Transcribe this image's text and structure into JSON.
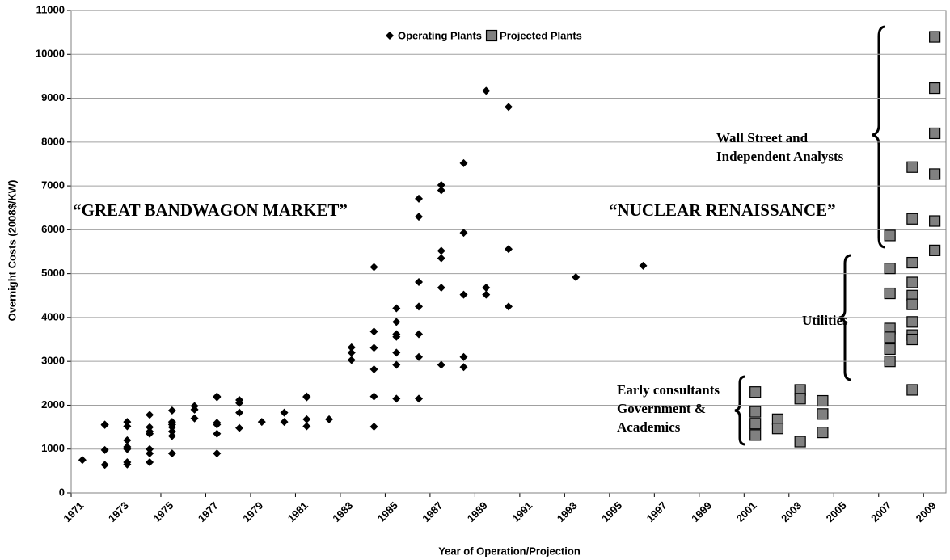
{
  "chart_data": {
    "type": "scatter",
    "xlabel": "Year of Operation/Projection",
    "ylabel": "Overnight Costs (2008$/KW)",
    "xlim": [
      1971,
      2010
    ],
    "xticks": [
      1971,
      1973,
      1975,
      1977,
      1979,
      1981,
      1983,
      1985,
      1987,
      1989,
      1991,
      1993,
      1995,
      1997,
      1999,
      2001,
      2003,
      2005,
      2007,
      2009
    ],
    "ylim": [
      0,
      11000
    ],
    "yticks": [
      0,
      1000,
      2000,
      3000,
      4000,
      5000,
      6000,
      7000,
      8000,
      9000,
      10000,
      11000
    ],
    "grid": true,
    "legend": "top",
    "series": [
      {
        "name": "Operating Plants",
        "color": "#000000",
        "marker": "diamond",
        "x": [
          1971.5,
          1972.5,
          1972.5,
          1972.5,
          1972.5,
          1973.5,
          1973.5,
          1973.5,
          1973.5,
          1973.5,
          1973.5,
          1973.5,
          1974.5,
          1974.5,
          1974.5,
          1974.5,
          1974.5,
          1974.5,
          1974.5,
          1975.5,
          1975.5,
          1975.5,
          1975.5,
          1975.5,
          1975.5,
          1975.5,
          1976.5,
          1976.5,
          1976.5,
          1977.5,
          1977.5,
          1977.5,
          1977.5,
          1977.5,
          1977.5,
          1978.5,
          1978.5,
          1978.5,
          1978.5,
          1979.5,
          1980.5,
          1980.5,
          1981.5,
          1981.5,
          1981.5,
          1981.5,
          1982.5,
          1983.5,
          1983.5,
          1983.5,
          1984.5,
          1984.5,
          1984.5,
          1984.5,
          1984.5,
          1984.5,
          1985.5,
          1985.5,
          1985.5,
          1985.5,
          1985.5,
          1985.5,
          1985.5,
          1986.5,
          1986.5,
          1986.5,
          1986.5,
          1986.5,
          1986.5,
          1986.5,
          1987.5,
          1987.5,
          1987.5,
          1987.5,
          1987.5,
          1987.5,
          1988.5,
          1988.5,
          1988.5,
          1988.5,
          1988.5,
          1989.5,
          1989.5,
          1989.5,
          1990.5,
          1990.5,
          1990.5,
          1993.5,
          1996.5
        ],
        "values": [
          750,
          1560,
          1550,
          980,
          640,
          1620,
          1520,
          1200,
          1050,
          1000,
          700,
          650,
          1780,
          1500,
          1400,
          1350,
          1000,
          900,
          700,
          1880,
          1620,
          1560,
          1500,
          1400,
          1300,
          900,
          1980,
          1900,
          1700,
          2200,
          2180,
          1600,
          1560,
          1350,
          900,
          2120,
          2050,
          1830,
          1480,
          1620,
          1830,
          1620,
          2200,
          2180,
          1680,
          1520,
          1680,
          3320,
          3200,
          3030,
          5150,
          3680,
          3310,
          2820,
          2200,
          1510,
          4210,
          3900,
          3620,
          3560,
          3200,
          2920,
          2150,
          6710,
          6300,
          4810,
          4250,
          3620,
          3100,
          2150,
          7020,
          6900,
          5520,
          5350,
          4680,
          2920,
          7520,
          5930,
          4520,
          3100,
          2870,
          9170,
          4680,
          4520,
          8800,
          5560,
          4250,
          4920,
          5180
        ]
      },
      {
        "name": "Projected Plants",
        "color": "#808080",
        "marker": "square",
        "x": [
          2001.5,
          2001.5,
          2001.5,
          2001.5,
          2002.5,
          2002.5,
          2003.5,
          2003.5,
          2003.5,
          2004.5,
          2004.5,
          2004.5,
          2007.5,
          2007.5,
          2007.5,
          2007.5,
          2007.5,
          2007.5,
          2007.5,
          2008.5,
          2008.5,
          2008.5,
          2008.5,
          2008.5,
          2008.5,
          2008.5,
          2008.5,
          2008.5,
          2008.5,
          2009.5,
          2009.5,
          2009.5,
          2009.5,
          2009.5,
          2009.5
        ],
        "values": [
          2300,
          1850,
          1580,
          1320,
          1680,
          1470,
          2350,
          2150,
          1170,
          2100,
          1800,
          1380,
          5870,
          5120,
          4550,
          3750,
          3550,
          3280,
          3000,
          7430,
          6250,
          5250,
          4800,
          4500,
          4300,
          3900,
          3600,
          3500,
          2350,
          10400,
          9230,
          8200,
          7270,
          6200,
          5530
        ]
      }
    ],
    "annotations": [
      {
        "lines": [
          "“GREAT BANDWAGON MARKET”"
        ]
      },
      {
        "lines": [
          "“NUCLEAR RENAISSANCE”"
        ]
      },
      {
        "lines": [
          "Wall Street and",
          "Independent Analysts"
        ]
      },
      {
        "lines": [
          "Utilities"
        ]
      },
      {
        "lines": [
          "Early consultants",
          "Government &",
          "Academics"
        ]
      }
    ]
  }
}
